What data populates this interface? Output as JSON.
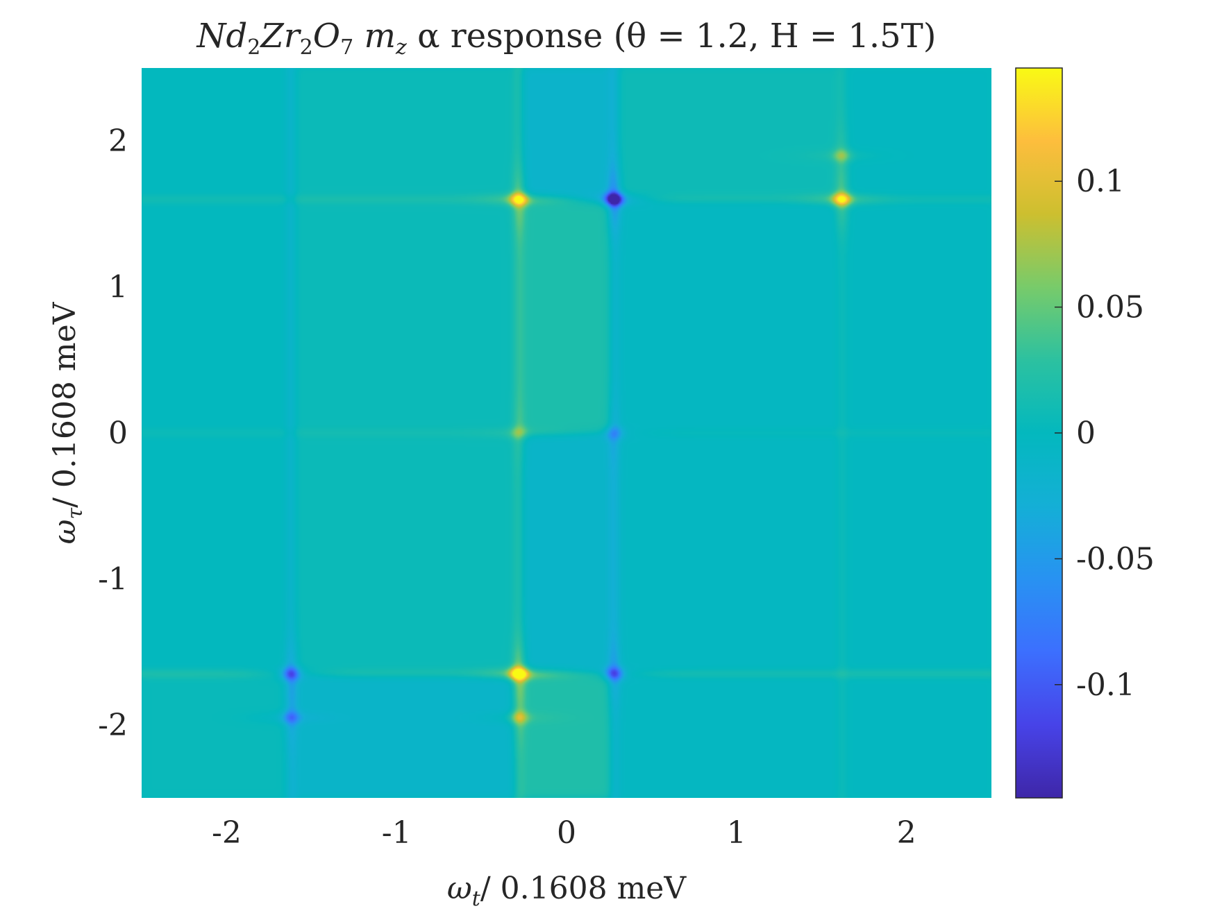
{
  "chart_data": {
    "type": "heatmap",
    "title": "Nd₂Zr₂O₇ m_z α response (θ = 1.2, H = 1.5T)",
    "title_parts": {
      "compound": "Nd",
      "sub1": "2",
      "mid": "Zr",
      "sub2": "2",
      "o": "O",
      "sub3": "7",
      "m": "m",
      "msub": "z",
      "rest": " α response (θ = 1.2, H = 1.5T)"
    },
    "xlabel": {
      "symbol": "ω",
      "sub": "t",
      "text": "/ 0.1608 meV"
    },
    "ylabel": {
      "symbol": "ω",
      "sub": "τ",
      "text": "/ 0.1608 meV"
    },
    "xlim": [
      -2.5,
      2.5
    ],
    "ylim": [
      -2.5,
      2.5
    ],
    "xticks": [
      -2,
      -1,
      0,
      1,
      2
    ],
    "xtick_labels": [
      "-2",
      "-1",
      "0",
      "1",
      "2"
    ],
    "yticks": [
      -2,
      -1,
      0,
      1,
      2
    ],
    "ytick_labels": [
      "-2",
      "-1",
      "0",
      "1",
      "2"
    ],
    "colormap": "parula",
    "clim": [
      -0.145,
      0.145
    ],
    "background_value": 0.0,
    "colorbar": {
      "ticks": [
        -0.1,
        -0.05,
        0,
        0.05,
        0.1
      ],
      "tick_labels": [
        "-0.1",
        "-0.05",
        "0",
        "0.05",
        "0.1"
      ]
    },
    "features": {
      "peaks": [
        {
          "x": -0.28,
          "y": -1.65,
          "value": 0.13
        },
        {
          "x": -0.28,
          "y": 1.6,
          "value": 0.1
        },
        {
          "x": 1.62,
          "y": 1.6,
          "value": 0.1
        },
        {
          "x": 0.28,
          "y": 1.6,
          "value": -0.145
        },
        {
          "x": -1.62,
          "y": -1.65,
          "value": -0.08
        },
        {
          "x": 0.28,
          "y": -1.65,
          "value": -0.08
        },
        {
          "x": -1.62,
          "y": -1.95,
          "value": -0.05
        },
        {
          "x": -0.28,
          "y": 0.0,
          "value": 0.03
        },
        {
          "x": 0.28,
          "y": 0.0,
          "value": -0.04
        },
        {
          "x": -0.28,
          "y": -1.95,
          "value": 0.05
        },
        {
          "x": 1.62,
          "y": 1.9,
          "value": 0.04
        }
      ],
      "regions": [
        {
          "x": [
            -2.5,
            -1.62
          ],
          "y": [
            -2.5,
            -1.65
          ],
          "value": 0.004
        },
        {
          "x": [
            -1.62,
            -0.28
          ],
          "y": [
            -2.5,
            -1.65
          ],
          "value": -0.012
        },
        {
          "x": [
            -1.62,
            -0.28
          ],
          "y": [
            -1.65,
            2.5
          ],
          "value": 0.006
        },
        {
          "x": [
            -0.28,
            0.28
          ],
          "y": [
            -2.5,
            -1.65
          ],
          "value": 0.02
        },
        {
          "x": [
            -0.28,
            0.28
          ],
          "y": [
            -1.65,
            0.0
          ],
          "value": -0.012
        },
        {
          "x": [
            -0.28,
            0.28
          ],
          "y": [
            0.0,
            1.6
          ],
          "value": 0.018
        },
        {
          "x": [
            -0.28,
            0.28
          ],
          "y": [
            1.6,
            2.5
          ],
          "value": -0.015
        },
        {
          "x": [
            0.28,
            1.62
          ],
          "y": [
            1.6,
            2.5
          ],
          "value": 0.008
        },
        {
          "x": [
            0.28,
            1.62
          ],
          "y": [
            -2.5,
            1.6
          ],
          "value": -0.004
        },
        {
          "x": [
            1.62,
            2.5
          ],
          "y": [
            -2.5,
            2.5
          ],
          "value": -0.002
        }
      ],
      "lines": [
        {
          "orientation": "vertical",
          "x": -1.62,
          "y": [
            -2.5,
            2.5
          ],
          "value": -0.015
        },
        {
          "orientation": "vertical",
          "x": -0.28,
          "y": [
            -2.5,
            2.5
          ],
          "value": 0.018
        },
        {
          "orientation": "vertical",
          "x": 0.28,
          "y": [
            -2.5,
            2.5
          ],
          "value": -0.018
        },
        {
          "orientation": "vertical",
          "x": 1.62,
          "y": [
            -2.5,
            2.5
          ],
          "value": 0.008
        },
        {
          "orientation": "horizontal",
          "y": -1.65,
          "x": [
            -2.5,
            2.5
          ],
          "value": 0.015
        },
        {
          "orientation": "horizontal",
          "y": 1.6,
          "x": [
            -2.5,
            2.5
          ],
          "value": 0.01
        },
        {
          "orientation": "horizontal",
          "y": 0.0,
          "x": [
            -2.5,
            2.5
          ],
          "value": 0.006
        }
      ]
    }
  }
}
